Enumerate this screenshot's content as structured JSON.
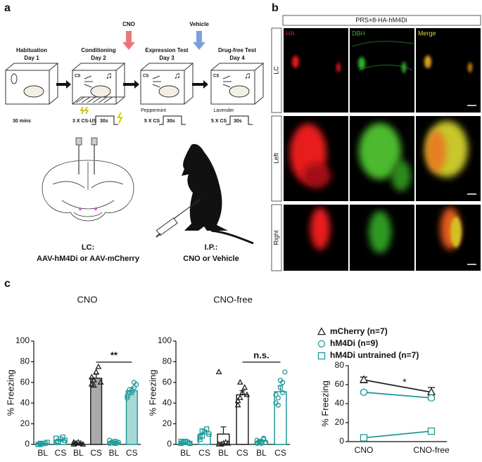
{
  "panel_a": {
    "label": "a",
    "stages": [
      {
        "name": "Habituation",
        "day": "Day 1",
        "protocol": "30 mins"
      },
      {
        "name": "Conditioning",
        "day": "Day 2",
        "protocol": "3 X CS-US",
        "duration": "30s",
        "cs": "CS"
      },
      {
        "name": "Expression Test",
        "day": "Day 3",
        "protocol": "5 X CS",
        "duration": "30s",
        "cs": "CS",
        "odor": "Peppermint"
      },
      {
        "name": "Drug-free Test",
        "day": "Day 4",
        "protocol": "5 X CS",
        "duration": "30s",
        "cs": "CS",
        "odor": "Lavender"
      }
    ],
    "drugs": [
      "CNO",
      "Vehicle"
    ],
    "injections": [
      {
        "site": "LC:",
        "detail": "AAV-hM4Di or AAV-mCherry"
      },
      {
        "site": "I.P.:",
        "detail": "CNO or Vehicle"
      }
    ]
  },
  "panel_b": {
    "label": "b",
    "header": "PRS×8-HA-hM4Di",
    "rows": [
      "LC",
      "Left",
      "Right"
    ],
    "columns": [
      "HA",
      "DBH",
      "Merge"
    ]
  },
  "panel_c": {
    "label": "c"
  },
  "chart_data": [
    {
      "type": "bar",
      "title": "CNO",
      "ylabel": "% Freezing",
      "ylim": [
        0,
        100
      ],
      "yticks": [
        0,
        20,
        40,
        60,
        80,
        100
      ],
      "categories": [
        "BL",
        "CS",
        "BL",
        "CS",
        "BL",
        "CS"
      ],
      "values": [
        1,
        4,
        1,
        64,
        2,
        52
      ],
      "errors": [
        0.5,
        1,
        0.5,
        4,
        0.5,
        3
      ],
      "colors": [
        "#1f9a98",
        "#1f9a98",
        "#222222",
        "#222222",
        "#1f9a98",
        "#1f9a98"
      ],
      "fills": [
        "#ffffff",
        "#ffffff",
        "#ffffff",
        "#aaaaaa",
        "#ffffff",
        "#a8d8d6"
      ],
      "markers": [
        "square",
        "square",
        "triangle",
        "triangle",
        "circle",
        "circle"
      ],
      "points": [
        [
          0,
          0,
          1,
          1,
          2,
          0,
          1
        ],
        [
          2,
          3,
          5,
          7,
          4,
          6,
          2
        ],
        [
          0,
          1,
          2,
          1,
          0,
          2,
          1
        ],
        [
          58,
          62,
          70,
          75,
          60,
          65,
          57
        ],
        [
          1,
          2,
          3,
          1,
          2,
          4,
          2,
          1,
          3
        ],
        [
          45,
          50,
          52,
          55,
          58,
          47,
          53,
          50,
          60
        ]
      ],
      "annotation": "**"
    },
    {
      "type": "bar",
      "title": "CNO-free",
      "ylabel": "% Freezing",
      "ylim": [
        0,
        100
      ],
      "yticks": [
        0,
        20,
        40,
        60,
        80,
        100
      ],
      "categories": [
        "BL",
        "CS",
        "BL",
        "CS",
        "BL",
        "CS"
      ],
      "values": [
        2,
        10,
        10,
        48,
        3,
        51
      ],
      "errors": [
        0.5,
        2,
        7,
        4,
        1,
        6
      ],
      "colors": [
        "#1f9a98",
        "#1f9a98",
        "#222222",
        "#222222",
        "#1f9a98",
        "#1f9a98"
      ],
      "fills": [
        "#ffffff",
        "#ffffff",
        "#ffffff",
        "#ffffff",
        "#ffffff",
        "#ffffff"
      ],
      "markers": [
        "square",
        "square",
        "triangle",
        "triangle",
        "circle",
        "circle"
      ],
      "points": [
        [
          1,
          2,
          3,
          2,
          1,
          3,
          2
        ],
        [
          5,
          8,
          12,
          15,
          10,
          7,
          13
        ],
        [
          0,
          0,
          1,
          2,
          1,
          70,
          0
        ],
        [
          38,
          45,
          50,
          55,
          48,
          42,
          60
        ],
        [
          1,
          2,
          3,
          5,
          2,
          4,
          3,
          1,
          6
        ],
        [
          40,
          45,
          55,
          60,
          70,
          48,
          38,
          62,
          50
        ]
      ],
      "annotation": "n.s."
    },
    {
      "type": "line",
      "ylabel": "% Freezing",
      "ylim": [
        0,
        80
      ],
      "yticks": [
        0,
        20,
        40,
        60,
        80
      ],
      "categories": [
        "CNO",
        "CNO-free"
      ],
      "legend": "upper right",
      "series": [
        {
          "name": "mCherry (n=7)",
          "color": "#222222",
          "marker": "triangle",
          "values": [
            65,
            52
          ],
          "errors": [
            3,
            5
          ]
        },
        {
          "name": "hM4Di (n=9)",
          "color": "#1f9a98",
          "marker": "circle",
          "values": [
            52,
            46
          ],
          "errors": [
            1.5,
            2
          ]
        },
        {
          "name": "hM4Di untrained (n=7)",
          "color": "#1f9a98",
          "marker": "square",
          "values": [
            4,
            11
          ],
          "errors": [
            1,
            1
          ]
        }
      ],
      "annotation": "*"
    }
  ]
}
